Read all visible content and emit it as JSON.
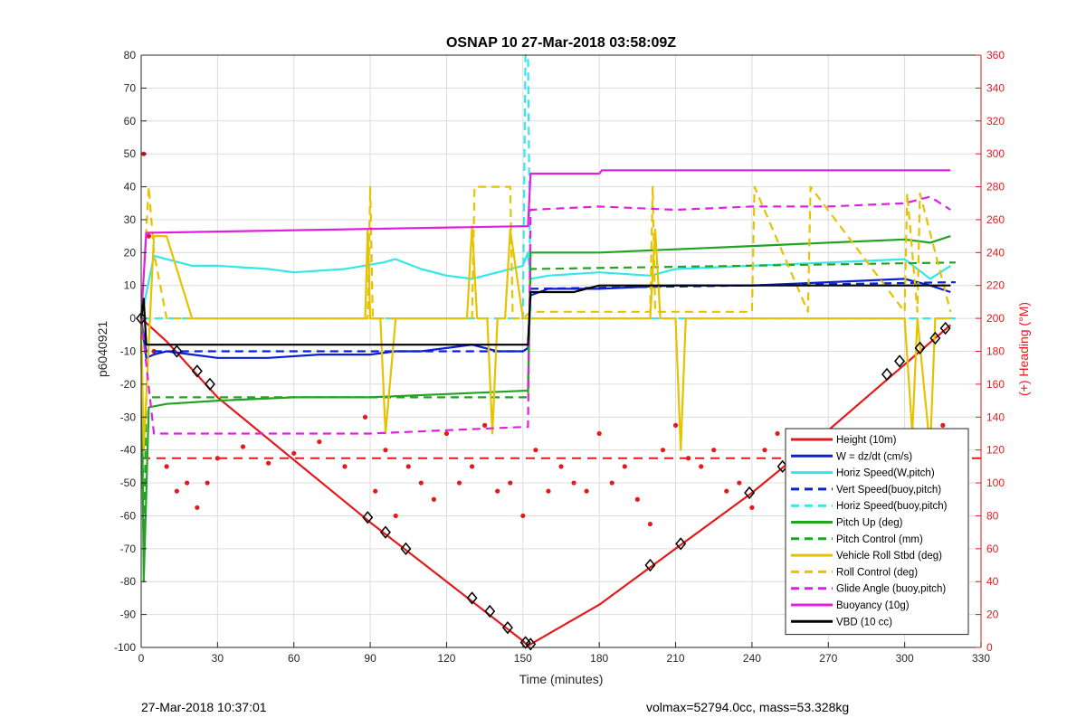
{
  "chart_data": {
    "type": "line",
    "title": "OSNAP 10 27-Mar-2018 03:58:09Z",
    "xlabel": "Time (minutes)",
    "ylabel": "p6040921",
    "y2label": "(+) Heading (°M)",
    "xlim": [
      0,
      330
    ],
    "ylim": [
      -100,
      80
    ],
    "y2lim": [
      0,
      360
    ],
    "xticks": [
      0,
      30,
      60,
      90,
      120,
      150,
      180,
      210,
      240,
      270,
      300,
      330
    ],
    "yticks": [
      -100,
      -90,
      -80,
      -70,
      -60,
      -50,
      -40,
      -30,
      -20,
      -10,
      0,
      10,
      20,
      30,
      40,
      50,
      60,
      70,
      80
    ],
    "y2ticks": [
      0,
      20,
      40,
      60,
      80,
      100,
      120,
      140,
      160,
      180,
      200,
      220,
      240,
      260,
      280,
      300,
      320,
      340,
      360
    ],
    "grid": true,
    "legend_position": "bottom-right",
    "series": [
      {
        "name": "Height (10m)",
        "color": "#e31a1c",
        "style": "solid",
        "x": [
          0,
          10,
          30,
          60,
          90,
          120,
          150,
          152,
          153,
          180,
          210,
          240,
          270,
          300,
          318
        ],
        "y": [
          0,
          -7,
          -24,
          -43,
          -62,
          -80,
          -98,
          -99.5,
          -99,
          -87,
          -70,
          -53,
          -34,
          -14,
          -2
        ]
      },
      {
        "name": "W = dz/dt (cm/s)",
        "color": "#0a1fd6",
        "style": "solid",
        "x": [
          0,
          2,
          5,
          10,
          20,
          30,
          50,
          70,
          90,
          100,
          110,
          120,
          130,
          140,
          150,
          152,
          153,
          160,
          180,
          210,
          240,
          270,
          300,
          310,
          318
        ],
        "y": [
          0,
          -12,
          -11,
          -10,
          -11,
          -12,
          -12,
          -11,
          -11,
          -10,
          -10,
          -9,
          -8,
          -10,
          -10,
          -9,
          7,
          9,
          9,
          10,
          10,
          11,
          12,
          10,
          8
        ]
      },
      {
        "name": "Horiz Speed(W,pitch)",
        "color": "#33e8e8",
        "style": "solid",
        "x": [
          0,
          5,
          10,
          20,
          30,
          50,
          60,
          80,
          95,
          100,
          110,
          120,
          130,
          140,
          150,
          152,
          153,
          160,
          180,
          200,
          210,
          240,
          270,
          300,
          310,
          318
        ],
        "y": [
          0,
          19,
          18,
          16,
          16,
          15,
          14,
          15,
          17,
          18,
          15,
          13,
          12,
          14,
          16,
          20,
          12,
          13,
          14,
          13,
          15,
          16,
          17,
          18,
          12,
          16
        ]
      },
      {
        "name": "Vert Speed(buoy,pitch)",
        "color": "#0a1fd6",
        "style": "dashed",
        "x": [
          0,
          2,
          150,
          152,
          153,
          320
        ],
        "y": [
          0,
          -10,
          -10,
          -9,
          9,
          11
        ]
      },
      {
        "name": "Horiz Speed(buoy,pitch)",
        "color": "#33e8e8",
        "style": "dashed",
        "x": [
          0,
          5,
          150,
          151,
          152,
          153,
          320
        ],
        "y": [
          0,
          0,
          0,
          80,
          80,
          0,
          0
        ]
      },
      {
        "name": "Pitch Up (deg)",
        "color": "#22a322",
        "style": "solid",
        "x": [
          0,
          1,
          3,
          10,
          30,
          60,
          90,
          120,
          150,
          152,
          153,
          180,
          210,
          240,
          270,
          300,
          310,
          318
        ],
        "y": [
          0,
          -80,
          -27,
          -26,
          -25,
          -24,
          -24,
          -23,
          -22,
          -22,
          20,
          20,
          21,
          22,
          23,
          24,
          23,
          25
        ]
      },
      {
        "name": "Pitch Control (mm)",
        "color": "#22a322",
        "style": "dashed",
        "x": [
          0,
          1,
          2,
          150,
          152,
          153,
          320
        ],
        "y": [
          0,
          -75,
          -24,
          -24,
          -24,
          15,
          17
        ]
      },
      {
        "name": "Vehicle Roll Stbd (deg)",
        "color": "#e6c200",
        "style": "solid",
        "x": [
          0,
          1,
          5,
          10,
          20,
          30,
          60,
          88,
          89,
          90,
          94,
          96,
          100,
          102,
          104,
          120,
          128,
          130,
          132,
          136,
          138,
          140,
          143,
          145,
          150,
          152,
          153,
          180,
          200,
          202,
          204,
          210,
          212,
          214,
          240,
          300,
          303,
          305,
          310,
          312,
          318
        ],
        "y": [
          0,
          -40,
          25,
          25,
          0,
          0,
          0,
          0,
          27,
          0,
          0,
          -35,
          0,
          0,
          0,
          0,
          0,
          28,
          0,
          0,
          -35,
          0,
          0,
          27,
          0,
          0,
          0,
          0,
          0,
          27,
          0,
          0,
          -40,
          0,
          0,
          0,
          -35,
          0,
          -40,
          0,
          0
        ]
      },
      {
        "name": "Roll Control (deg)",
        "color": "#e6c200",
        "style": "dashed",
        "x": [
          0,
          3,
          5,
          10,
          89,
          90,
          91,
          130,
          131,
          145,
          146,
          150,
          153,
          200,
          201,
          202,
          240,
          241,
          262,
          263,
          300,
          301,
          305,
          306,
          318
        ],
        "y": [
          0,
          40,
          20,
          0,
          0,
          40,
          0,
          0,
          40,
          40,
          0,
          0,
          2,
          2,
          40,
          2,
          2,
          40,
          2,
          40,
          2,
          38,
          2,
          38,
          2
        ]
      },
      {
        "name": "Glide Angle (buoy,pitch)",
        "color": "#e020e0",
        "style": "dashed",
        "x": [
          0,
          5,
          50,
          90,
          120,
          150,
          152,
          153,
          180,
          210,
          240,
          270,
          300,
          310,
          318
        ],
        "y": [
          0,
          -35,
          -35,
          -35,
          -34,
          -33,
          -33,
          33,
          34,
          33,
          34,
          34,
          35,
          37,
          33
        ]
      },
      {
        "name": "Buoyancy (10g)",
        "color": "#e020e0",
        "style": "solid",
        "x": [
          0,
          2,
          150,
          152,
          153,
          180,
          181,
          318
        ],
        "y": [
          0,
          26,
          28,
          28,
          44,
          44,
          45,
          45
        ]
      },
      {
        "name": "VBD (10 cc)",
        "color": "#000000",
        "style": "solid",
        "x": [
          0,
          1,
          2,
          10,
          150,
          152,
          153,
          170,
          180,
          181,
          318
        ],
        "y": [
          0,
          6,
          -8,
          -8,
          -8,
          -8,
          8,
          8,
          10,
          10,
          10
        ]
      }
    ],
    "heading_series": {
      "name": "Heading",
      "color": "#e31a1c",
      "reference_line": 115,
      "x": [
        1,
        3,
        5,
        10,
        14,
        18,
        22,
        26,
        30,
        40,
        50,
        60,
        70,
        80,
        88,
        92,
        96,
        100,
        105,
        110,
        115,
        120,
        125,
        130,
        135,
        140,
        145,
        150,
        155,
        160,
        165,
        170,
        175,
        180,
        185,
        190,
        195,
        200,
        205,
        210,
        215,
        220,
        225,
        230,
        235,
        240,
        245,
        250,
        255,
        260,
        265,
        270,
        275,
        280,
        285,
        290,
        295,
        300,
        305,
        310,
        315,
        318
      ],
      "y": [
        300,
        250,
        180,
        110,
        95,
        100,
        85,
        100,
        115,
        122,
        112,
        118,
        125,
        110,
        140,
        95,
        120,
        80,
        110,
        100,
        90,
        130,
        100,
        110,
        135,
        95,
        100,
        80,
        120,
        95,
        110,
        100,
        95,
        130,
        100,
        110,
        90,
        75,
        120,
        135,
        115,
        110,
        120,
        95,
        100,
        85,
        120,
        130,
        110,
        125,
        115,
        120,
        110,
        105,
        112,
        115,
        110,
        108,
        100,
        125,
        135,
        120
      ]
    },
    "markers": {
      "x": [
        0,
        14,
        22,
        27,
        89,
        96,
        104,
        130,
        137,
        144,
        151,
        153,
        200,
        212,
        239,
        252,
        293,
        298,
        306,
        312,
        316
      ],
      "y": [
        0,
        -10,
        -16,
        -20,
        -60.5,
        -65,
        -70,
        -85,
        -89,
        -94,
        -98.5,
        -99,
        -75,
        -68.5,
        -53,
        -45,
        -17,
        -13,
        -9,
        -6,
        -3
      ]
    }
  },
  "footer": {
    "left": "27-Mar-2018 10:37:01",
    "right": "volmax=52794.0cc, mass=53.328kg"
  }
}
